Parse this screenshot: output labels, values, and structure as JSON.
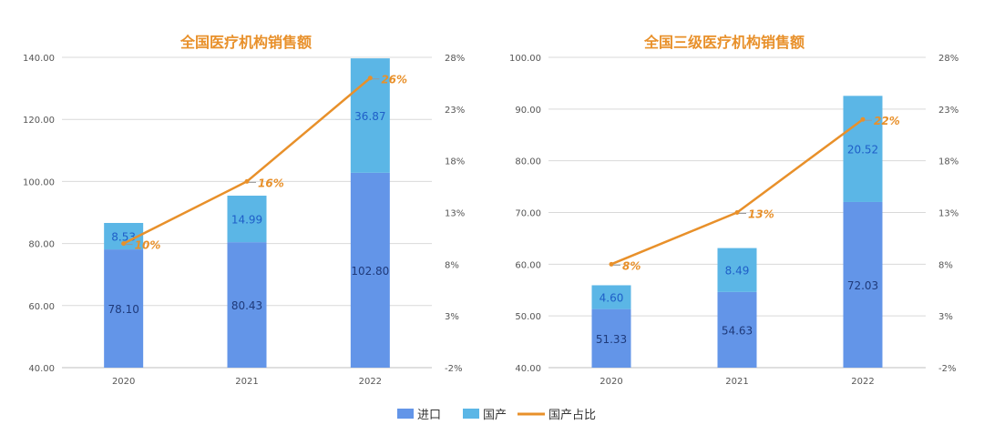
{
  "chart_data": [
    {
      "type": "bar",
      "stacked": true,
      "title": "全国医疗机构销售额",
      "categories": [
        "2020",
        "2021",
        "2022"
      ],
      "series": [
        {
          "name": "进口",
          "type": "bar",
          "color": "#6395E8",
          "values": [
            78.1,
            80.43,
            102.8
          ],
          "labels": [
            "78.10",
            "80.43",
            "102.80"
          ]
        },
        {
          "name": "国产",
          "type": "bar",
          "color": "#5BB6E6",
          "values": [
            8.53,
            14.99,
            36.87
          ],
          "labels": [
            "8.53",
            "14.99",
            "36.87"
          ]
        },
        {
          "name": "国产占比",
          "type": "line",
          "axis": "right",
          "color": "#E8902A",
          "values": [
            10,
            16,
            26
          ],
          "labels": [
            "10%",
            "16%",
            "26%"
          ]
        }
      ],
      "ylim": [
        40,
        140
      ],
      "yticks": [
        "40.00",
        "60.00",
        "80.00",
        "100.00",
        "120.00",
        "140.00"
      ],
      "y2lim": [
        -2,
        28
      ],
      "y2ticks": [
        "-2%",
        "3%",
        "8%",
        "13%",
        "18%",
        "23%",
        "28%"
      ],
      "grid": true
    },
    {
      "type": "bar",
      "stacked": true,
      "title": "全国三级医疗机构销售额",
      "categories": [
        "2020",
        "2021",
        "2022"
      ],
      "series": [
        {
          "name": "进口",
          "type": "bar",
          "color": "#6395E8",
          "values": [
            51.33,
            54.63,
            72.03
          ],
          "labels": [
            "51.33",
            "54.63",
            "72.03"
          ]
        },
        {
          "name": "国产",
          "type": "bar",
          "color": "#5BB6E6",
          "values": [
            4.6,
            8.49,
            20.52
          ],
          "labels": [
            "4.60",
            "8.49",
            "20.52"
          ]
        },
        {
          "name": "国产占比",
          "type": "line",
          "axis": "right",
          "color": "#E8902A",
          "values": [
            8,
            13,
            22
          ],
          "labels": [
            "8%",
            "13%",
            "22%"
          ]
        }
      ],
      "ylim": [
        40,
        100
      ],
      "yticks": [
        "40.00",
        "50.00",
        "60.00",
        "70.00",
        "80.00",
        "90.00",
        "100.00"
      ],
      "y2lim": [
        -2,
        28
      ],
      "y2ticks": [
        "-2%",
        "3%",
        "8%",
        "13%",
        "18%",
        "23%",
        "28%"
      ],
      "grid": true
    }
  ],
  "legend": {
    "position": "bottom",
    "items": [
      {
        "label": "进口",
        "color": "#6395E8",
        "shape": "rect"
      },
      {
        "label": "国产",
        "color": "#5BB6E6",
        "shape": "rect"
      },
      {
        "label": "国产占比",
        "color": "#E8902A",
        "shape": "line"
      }
    ]
  }
}
